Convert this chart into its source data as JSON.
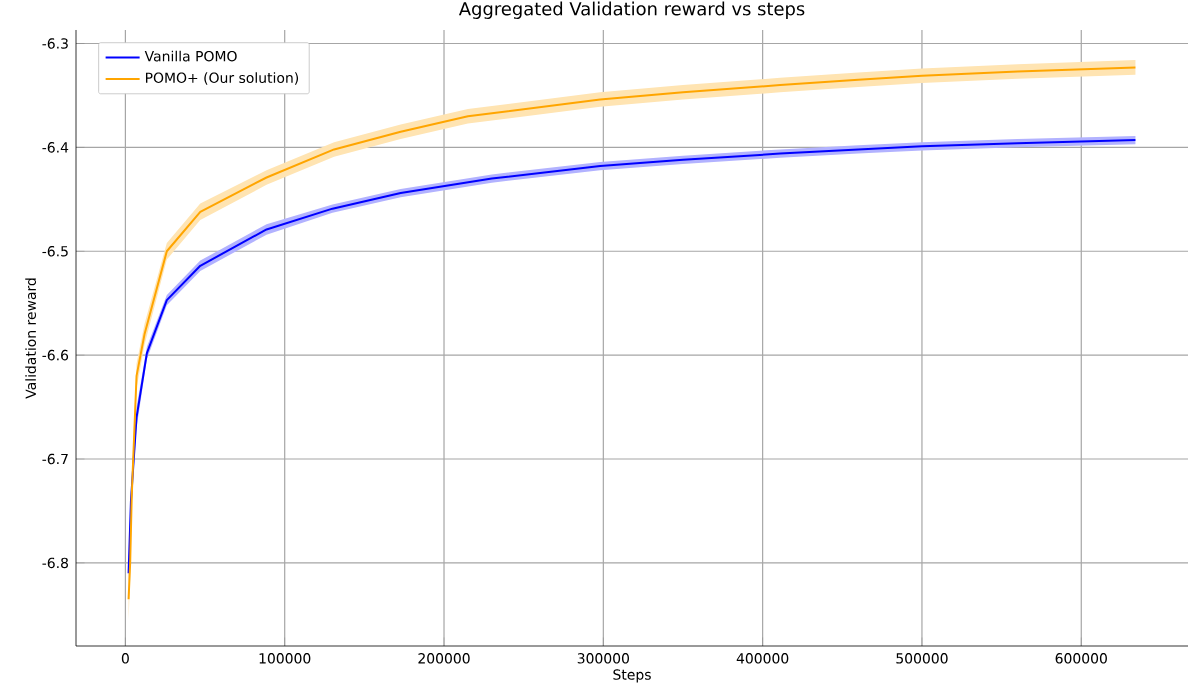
{
  "chart_data": {
    "type": "line",
    "title": "Aggregated Validation reward vs steps",
    "xlabel": "Steps",
    "ylabel": "Validation reward",
    "xlim": [
      -31000,
      667000
    ],
    "ylim": [
      -6.88,
      -6.287
    ],
    "xticks": [
      0,
      100000,
      200000,
      300000,
      400000,
      500000,
      600000
    ],
    "yticks": [
      -6.8,
      -6.7,
      -6.6,
      -6.5,
      -6.4,
      -6.3
    ],
    "grid": true,
    "legend": "top left",
    "marker": "none",
    "line_style": "solid",
    "series": [
      {
        "name": "Vanilla POMO",
        "color": "#0000ff",
        "x": [
          2000,
          3500,
          7000,
          13500,
          26000,
          47000,
          88600,
          130000,
          172800,
          230000,
          298000,
          350000,
          411000,
          460000,
          500000,
          560000,
          634000
        ],
        "values": [
          -6.81,
          -6.74,
          -6.66,
          -6.598,
          -6.547,
          -6.514,
          -6.479,
          -6.459,
          -6.444,
          -6.43,
          -6.418,
          -6.412,
          -6.406,
          -6.402,
          -6.399,
          -6.396,
          -6.393
        ],
        "lower": [
          -6.82,
          -6.75,
          -6.67,
          -6.604,
          -6.552,
          -6.519,
          -6.484,
          -6.463,
          -6.448,
          -6.434,
          -6.422,
          -6.416,
          -6.41,
          -6.406,
          -6.403,
          -6.4,
          -6.397
        ],
        "upper": [
          -6.8,
          -6.73,
          -6.65,
          -6.592,
          -6.542,
          -6.509,
          -6.474,
          -6.455,
          -6.44,
          -6.426,
          -6.414,
          -6.408,
          -6.402,
          -6.398,
          -6.395,
          -6.392,
          -6.389
        ]
      },
      {
        "name": "POMO+ (Our solution)",
        "color": "#ffa500",
        "x": [
          2000,
          3000,
          4000,
          7000,
          12000,
          26000,
          47000,
          88600,
          131000,
          172800,
          215000,
          298000,
          350000,
          411000,
          460000,
          500000,
          560000,
          634000
        ],
        "values": [
          -6.835,
          -6.8,
          -6.735,
          -6.62,
          -6.58,
          -6.5,
          -6.462,
          -6.429,
          -6.402,
          -6.385,
          -6.37,
          -6.354,
          -6.347,
          -6.34,
          -6.335,
          -6.331,
          -6.327,
          -6.323
        ],
        "lower": [
          -6.855,
          -6.815,
          -6.75,
          -6.632,
          -6.59,
          -6.508,
          -6.47,
          -6.436,
          -6.409,
          -6.392,
          -6.377,
          -6.361,
          -6.354,
          -6.347,
          -6.342,
          -6.338,
          -6.334,
          -6.33
        ],
        "upper": [
          -6.815,
          -6.785,
          -6.72,
          -6.608,
          -6.57,
          -6.492,
          -6.454,
          -6.422,
          -6.395,
          -6.378,
          -6.363,
          -6.347,
          -6.34,
          -6.333,
          -6.328,
          -6.324,
          -6.32,
          -6.316
        ]
      }
    ]
  }
}
